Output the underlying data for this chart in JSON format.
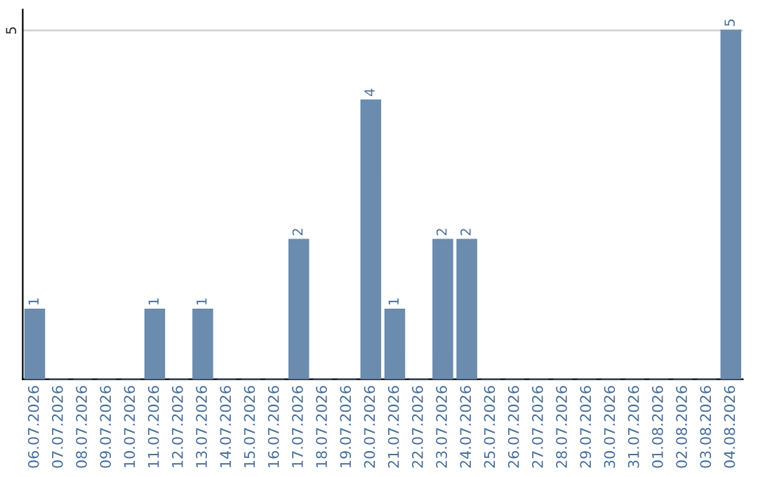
{
  "chart_data": {
    "type": "bar",
    "categories": [
      "06.07.2026",
      "07.07.2026",
      "08.07.2026",
      "09.07.2026",
      "10.07.2026",
      "11.07.2026",
      "12.07.2026",
      "13.07.2026",
      "14.07.2026",
      "15.07.2026",
      "16.07.2026",
      "17.07.2026",
      "18.07.2026",
      "19.07.2026",
      "20.07.2026",
      "21.07.2026",
      "22.07.2026",
      "23.07.2026",
      "24.07.2026",
      "25.07.2026",
      "26.07.2026",
      "27.07.2026",
      "28.07.2026",
      "29.07.2026",
      "30.07.2026",
      "31.07.2026",
      "01.08.2026",
      "02.08.2026",
      "03.08.2026",
      "04.08.2026"
    ],
    "values": [
      1,
      0,
      0,
      0,
      0,
      1,
      0,
      1,
      0,
      0,
      0,
      2,
      0,
      0,
      4,
      1,
      0,
      2,
      2,
      0,
      0,
      0,
      0,
      0,
      0,
      0,
      0,
      0,
      0,
      5
    ],
    "value_labels": [
      "1",
      null,
      null,
      null,
      null,
      "1",
      null,
      "1",
      null,
      null,
      null,
      "2",
      null,
      null,
      "4",
      "1",
      null,
      "2",
      "2",
      null,
      null,
      null,
      null,
      null,
      null,
      null,
      null,
      null,
      null,
      "5"
    ],
    "color": "#6b8cae",
    "ylim": [
      0,
      5.3
    ],
    "yticks": [
      5
    ],
    "grid": "y"
  }
}
